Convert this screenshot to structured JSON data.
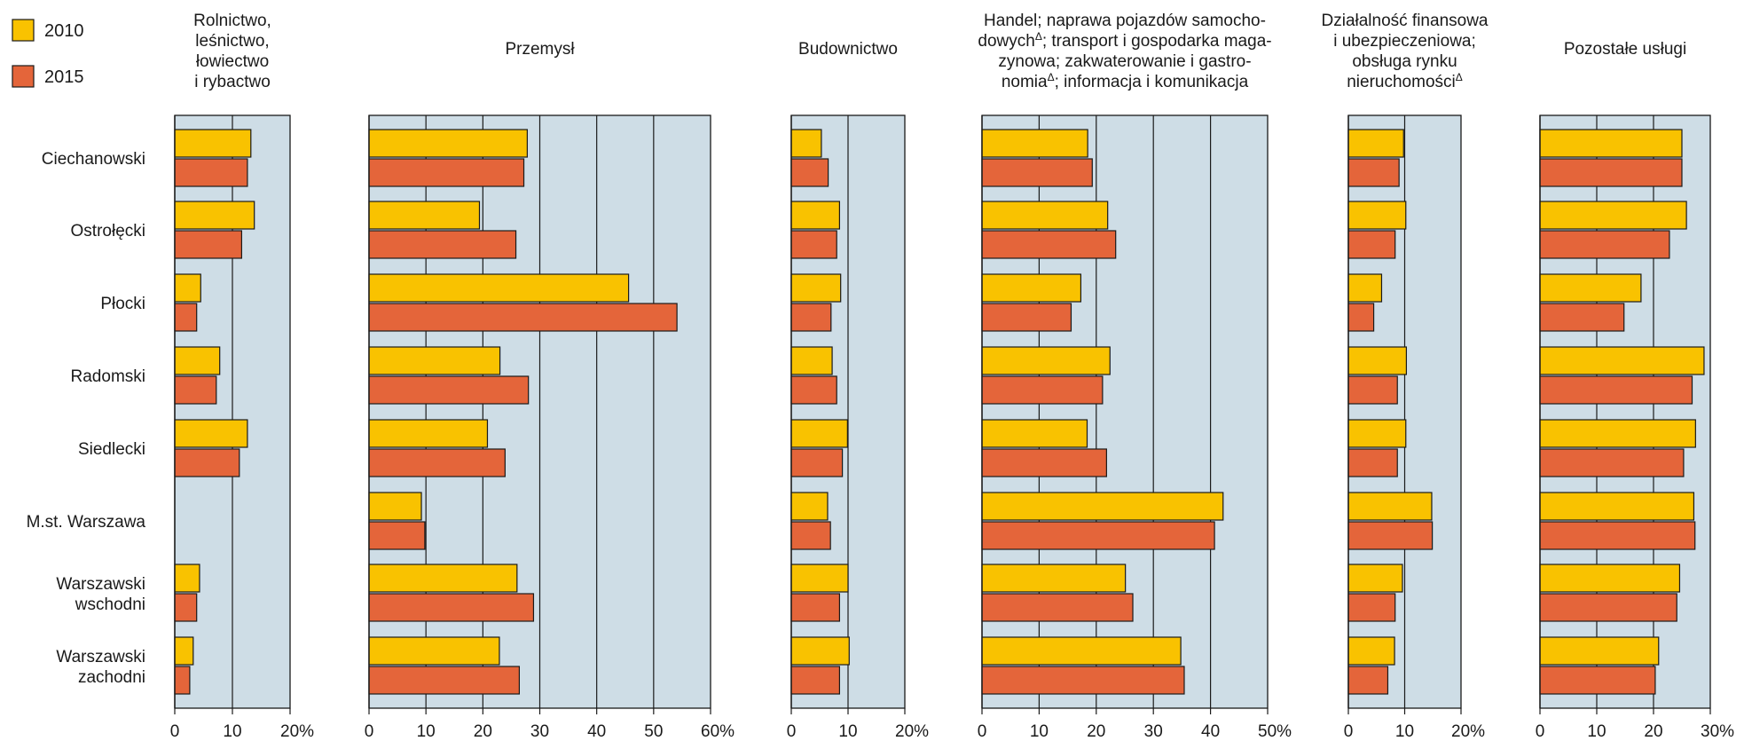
{
  "chart_data": {
    "type": "bar",
    "orientation": "horizontal",
    "categories": [
      "Ciechanowski",
      "Ostrołęcki",
      "Płocki",
      "Radomski",
      "Siedlecki",
      "M.st. Warszawa",
      "Warszawski wschodni",
      "Warszawski zachodni"
    ],
    "legend": {
      "placement": "top-left",
      "series_names": [
        "2010",
        "2015"
      ],
      "colors": [
        "#F9C200",
        "#E4653A"
      ]
    },
    "panels": [
      {
        "title_lines": [
          "Rolnictwo,",
          "leśnictwo,",
          "łowiectwo",
          "i rybactwo"
        ],
        "xlim": [
          0,
          20
        ],
        "ticks": [
          "0",
          "10",
          "20%"
        ],
        "series": [
          {
            "name": "2010",
            "values": [
              13.2,
              13.8,
              4.5,
              7.8,
              12.6,
              null,
              4.3,
              3.2
            ]
          },
          {
            "name": "2015",
            "values": [
              12.6,
              11.6,
              3.8,
              7.2,
              11.2,
              null,
              3.8,
              2.6
            ]
          }
        ]
      },
      {
        "title_lines": [
          "Przemysł"
        ],
        "xlim": [
          0,
          60
        ],
        "ticks": [
          "0",
          "10",
          "20",
          "30",
          "40",
          "50",
          "60%"
        ],
        "series": [
          {
            "name": "2010",
            "values": [
              27.8,
              19.4,
              45.6,
              23.0,
              20.8,
              9.2,
              26.0,
              22.9
            ]
          },
          {
            "name": "2015",
            "values": [
              27.2,
              25.8,
              54.1,
              28.0,
              23.9,
              9.8,
              28.9,
              26.4
            ]
          }
        ]
      },
      {
        "title_lines": [
          "Budownictwo"
        ],
        "xlim": [
          0,
          20
        ],
        "ticks": [
          "0",
          "10",
          "20%"
        ],
        "series": [
          {
            "name": "2010",
            "values": [
              5.3,
              8.5,
              8.7,
              7.2,
              9.9,
              6.4,
              10.0,
              10.2
            ]
          },
          {
            "name": "2015",
            "values": [
              6.5,
              8.0,
              7.0,
              8.0,
              9.0,
              6.9,
              8.5,
              8.5
            ]
          }
        ]
      },
      {
        "title_lines": [
          "Handel; naprawa pojazdów samocho-",
          "dowych^; transport i gospodarka maga-",
          "zynowa; zakwaterowanie i gastro-",
          "nomia^; informacja i komunikacja"
        ],
        "xlim": [
          0,
          50
        ],
        "ticks": [
          "0",
          "10",
          "20",
          "30",
          "40",
          "50%"
        ],
        "series": [
          {
            "name": "2010",
            "values": [
              18.5,
              22.0,
              17.3,
              22.4,
              18.4,
              42.2,
              25.1,
              34.8
            ]
          },
          {
            "name": "2015",
            "values": [
              19.3,
              23.4,
              15.6,
              21.1,
              21.8,
              40.7,
              26.4,
              35.4
            ]
          }
        ]
      },
      {
        "title_lines": [
          "Działalność finansowa",
          "i ubezpieczeniowa;",
          "obsługa rynku",
          "nieruchomości^"
        ],
        "xlim": [
          0,
          20
        ],
        "ticks": [
          "0",
          "10",
          "20%"
        ],
        "series": [
          {
            "name": "2010",
            "values": [
              9.8,
              10.2,
              5.9,
              10.3,
              10.2,
              14.8,
              9.6,
              8.2
            ]
          },
          {
            "name": "2015",
            "values": [
              9.0,
              8.3,
              4.5,
              8.7,
              8.7,
              14.9,
              8.3,
              7.0
            ]
          }
        ]
      },
      {
        "title_lines": [
          "Pozostałe usługi"
        ],
        "xlim": [
          0,
          30
        ],
        "ticks": [
          "0",
          "10",
          "20",
          "30%"
        ],
        "series": [
          {
            "name": "2010",
            "values": [
              25.0,
              25.8,
              17.8,
              28.9,
              27.4,
              27.1,
              24.6,
              20.9
            ]
          },
          {
            "name": "2015",
            "values": [
              25.0,
              22.8,
              14.8,
              26.8,
              25.3,
              27.3,
              24.1,
              20.3
            ]
          }
        ]
      }
    ]
  }
}
